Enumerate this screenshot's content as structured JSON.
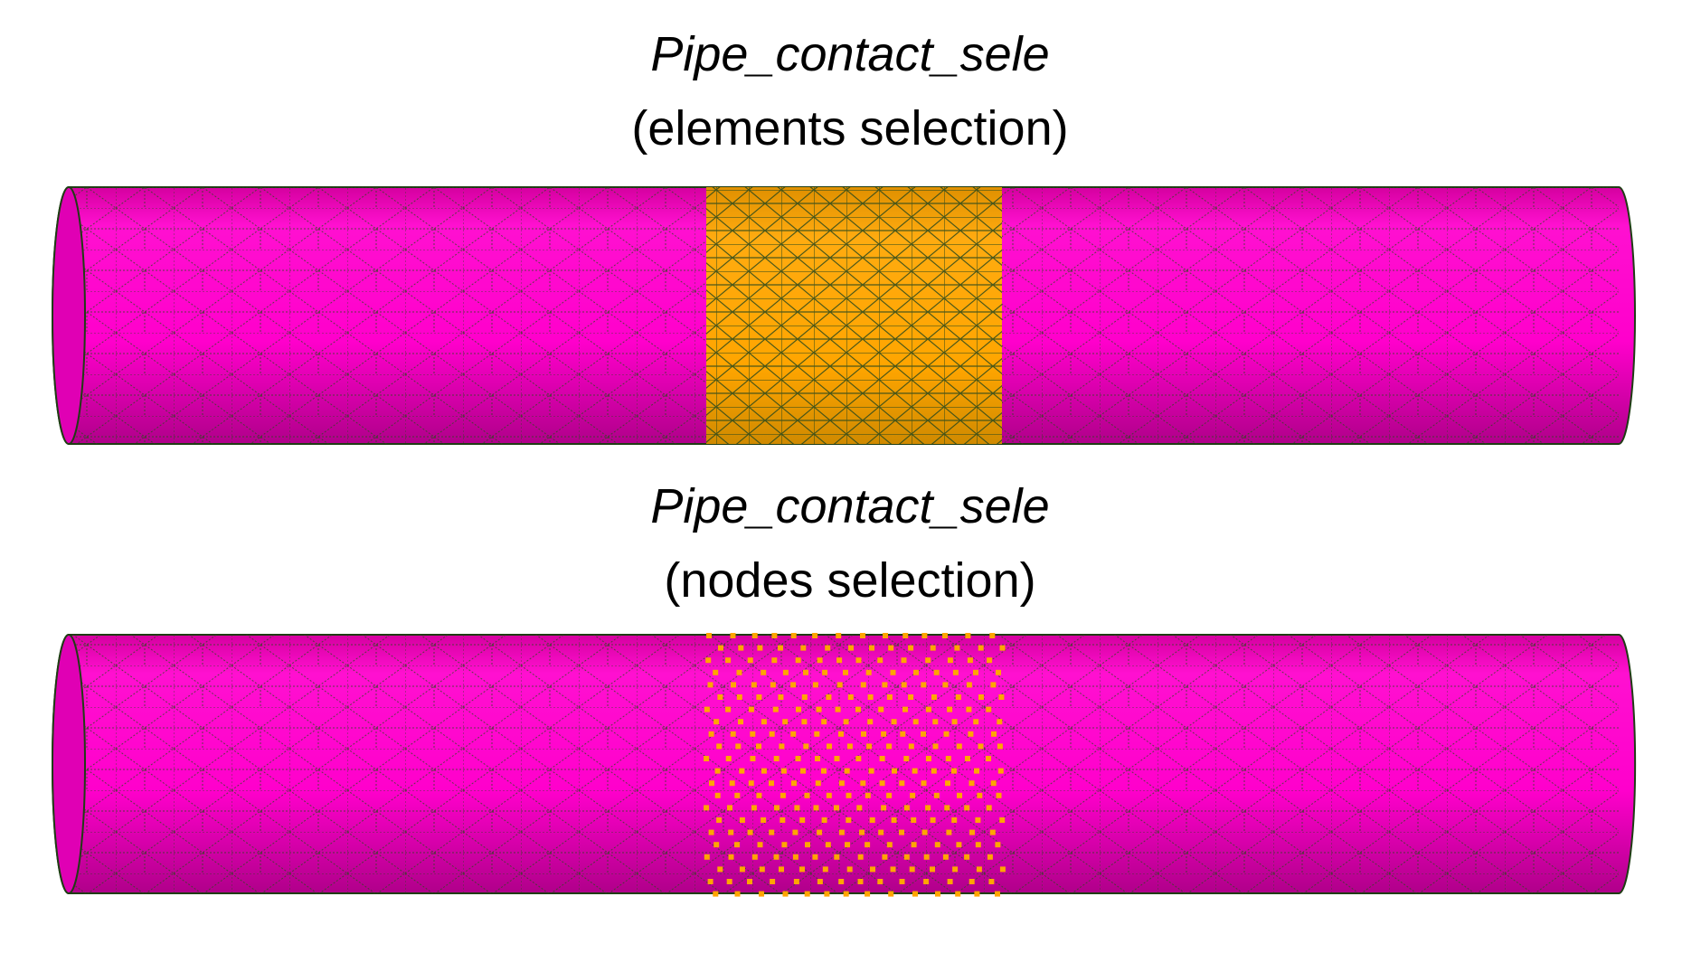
{
  "panels": [
    {
      "title": "Pipe_contact_sele",
      "subtitle": "(elements selection)"
    },
    {
      "title": "Pipe_contact_sele",
      "subtitle": "(nodes selection)"
    }
  ]
}
